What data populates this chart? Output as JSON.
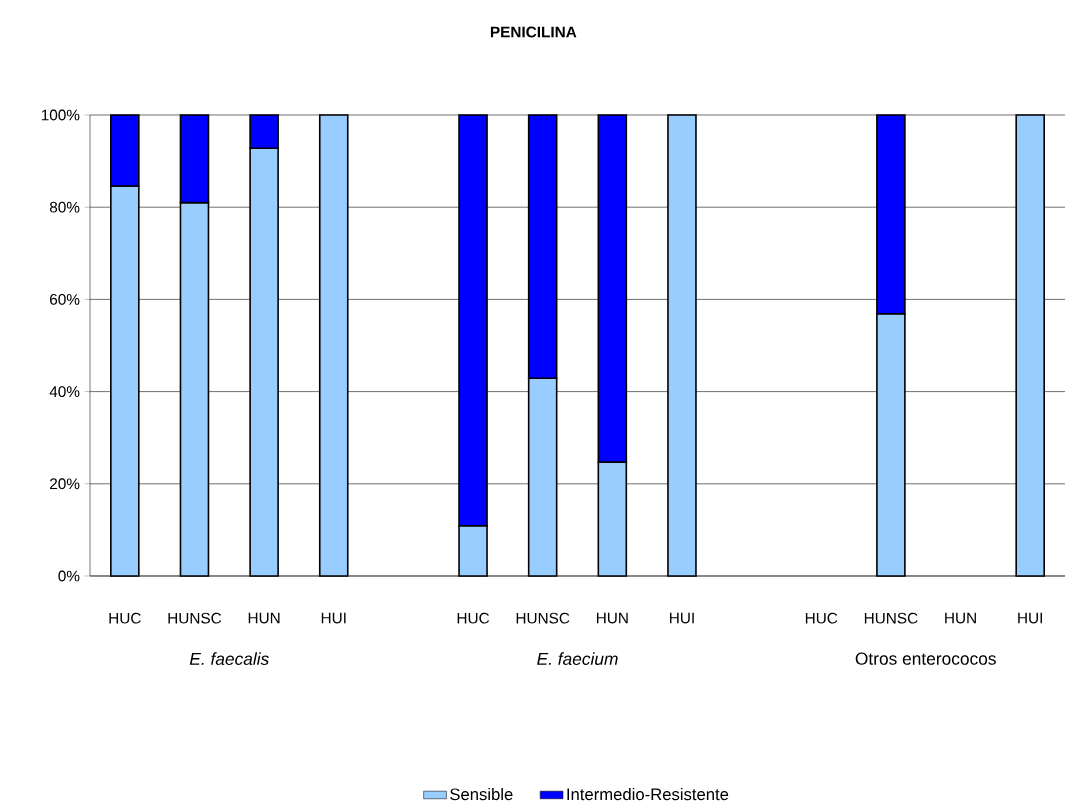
{
  "chart_data": {
    "type": "bar",
    "title": "PENICILINA",
    "stacked": true,
    "categories": [
      "HUC",
      "HUNSC",
      "HUN",
      "HUI",
      null,
      "HUC",
      "HUNSC",
      "HUN",
      "HUI",
      null,
      "HUC",
      "HUNSC",
      "HUN",
      "HUI"
    ],
    "series": [
      {
        "name": "Sensible",
        "color": "#99ccff",
        "values": [
          84.6,
          81.0,
          92.8,
          100,
          null,
          10.9,
          42.9,
          24.7,
          100,
          null,
          null,
          56.9,
          null,
          100
        ]
      },
      {
        "name": "Intermedio-Resistente",
        "color": "#0000ff",
        "values": [
          15.4,
          19.0,
          7.2,
          null,
          null,
          89.1,
          57.1,
          75.3,
          null,
          null,
          null,
          43.1,
          null,
          null
        ]
      }
    ],
    "ylim": [
      0,
      100
    ],
    "yticks": [
      {
        "value": 0,
        "label": "0%"
      },
      {
        "value": 20,
        "label": "20%"
      },
      {
        "value": 40,
        "label": "40%"
      },
      {
        "value": 60,
        "label": "60%"
      },
      {
        "value": 80,
        "label": "80%"
      },
      {
        "value": 100,
        "label": "100%"
      }
    ],
    "grid": "y",
    "legend": "bottom",
    "annotations": [
      "*E. faecalis*",
      "*E. faecium*",
      "Otros enterococos"
    ]
  }
}
